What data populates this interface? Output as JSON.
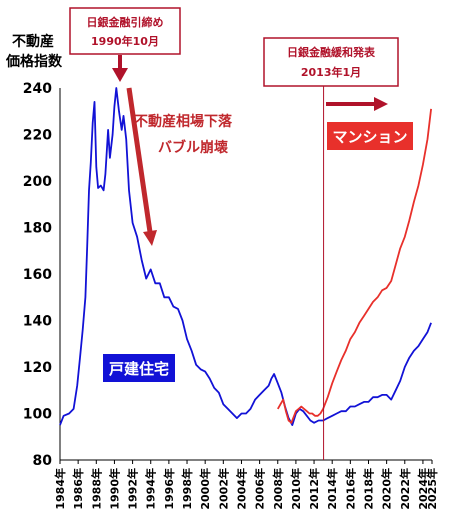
{
  "chart_data": {
    "type": "line",
    "ylabel_line1": "不動産",
    "ylabel_line2": "価格指数",
    "ylim": [
      80,
      240
    ],
    "yticks": [
      80,
      100,
      120,
      140,
      160,
      180,
      200,
      220,
      240
    ],
    "xlim": [
      1984,
      2025
    ],
    "xticks": [
      "1984年",
      "1986年",
      "1988年",
      "1990年",
      "1992年",
      "1994年",
      "1996年",
      "1998年",
      "2000年",
      "2002年",
      "2004年",
      "2006年",
      "2008年",
      "2010年",
      "2012年",
      "2014年",
      "2016年",
      "2018年",
      "2020年",
      "2022年",
      "2024年",
      "2025年"
    ],
    "grid": false,
    "series": [
      {
        "name": "戸建住宅",
        "color": "#1212d6",
        "x": [
          1984.0,
          1984.4,
          1985.0,
          1985.5,
          1985.9,
          1986.2,
          1986.5,
          1986.8,
          1987.0,
          1987.2,
          1987.4,
          1987.6,
          1987.8,
          1988.0,
          1988.2,
          1988.5,
          1988.8,
          1989.0,
          1989.3,
          1989.5,
          1989.8,
          1990.0,
          1990.2,
          1990.5,
          1990.8,
          1991.0,
          1991.3,
          1991.6,
          1992.0,
          1992.5,
          1993.0,
          1993.5,
          1994.0,
          1994.5,
          1995.0,
          1995.5,
          1996.0,
          1996.5,
          1997.0,
          1997.5,
          1998.0,
          1998.5,
          1999.0,
          1999.5,
          2000.0,
          2000.5,
          2001.0,
          2001.5,
          2002.0,
          2002.5,
          2003.0,
          2003.5,
          2004.0,
          2004.5,
          2005.0,
          2005.5,
          2006.0,
          2006.5,
          2007.0,
          2007.3,
          2007.6,
          2008.0,
          2008.4,
          2008.8,
          2009.2,
          2009.6,
          2010.0,
          2010.4,
          2010.8,
          2011.2,
          2011.6,
          2012.0,
          2012.5,
          2013.0,
          2013.5,
          2014.0,
          2014.5,
          2015.0,
          2015.5,
          2016.0,
          2016.5,
          2017.0,
          2017.5,
          2018.0,
          2018.5,
          2019.0,
          2019.5,
          2020.0,
          2020.5,
          2021.0,
          2021.5,
          2022.0,
          2022.5,
          2023.0,
          2023.5,
          2024.0,
          2024.5,
          2024.9
        ],
        "y": [
          95,
          99,
          100,
          102,
          112,
          124,
          136,
          150,
          172,
          196,
          208,
          225,
          234,
          206,
          197,
          198,
          196,
          203,
          222,
          210,
          220,
          232,
          240,
          230,
          222,
          228,
          218,
          196,
          182,
          176,
          166,
          158,
          162,
          156,
          156,
          150,
          150,
          146,
          145,
          140,
          132,
          127,
          121,
          119,
          118,
          115,
          111,
          109,
          104,
          102,
          100,
          98,
          100,
          100,
          102,
          106,
          108,
          110,
          112,
          115,
          117,
          113,
          109,
          103,
          98,
          95,
          100,
          102,
          101,
          99,
          97,
          96,
          97,
          97,
          98,
          99,
          100,
          101,
          101,
          103,
          103,
          104,
          105,
          105,
          107,
          107,
          108,
          108,
          106,
          110,
          114,
          120,
          124,
          127,
          129,
          132,
          135,
          139
        ]
      },
      {
        "name": "マンション",
        "color": "#e8302b",
        "x": [
          2008.0,
          2008.3,
          2008.6,
          2008.9,
          2009.2,
          2009.5,
          2009.8,
          2010.0,
          2010.3,
          2010.6,
          2010.9,
          2011.2,
          2011.5,
          2011.8,
          2012.1,
          2012.4,
          2012.7,
          2013.0,
          2013.5,
          2014.0,
          2014.5,
          2015.0,
          2015.5,
          2016.0,
          2016.5,
          2017.0,
          2017.5,
          2018.0,
          2018.5,
          2019.0,
          2019.5,
          2020.0,
          2020.5,
          2021.0,
          2021.5,
          2022.0,
          2022.5,
          2023.0,
          2023.5,
          2024.0,
          2024.5,
          2024.9
        ],
        "y": [
          102,
          104,
          106,
          101,
          97,
          96,
          99,
          101,
          102,
          103,
          102,
          101,
          100,
          100,
          99,
          99,
          100,
          102,
          107,
          113,
          118,
          123,
          127,
          132,
          135,
          139,
          142,
          145,
          148,
          150,
          153,
          154,
          157,
          164,
          171,
          176,
          183,
          191,
          198,
          207,
          218,
          231
        ]
      }
    ],
    "annotations": {
      "boj_tightening": {
        "line1": "日銀金融引締め",
        "line2": "1990年10月"
      },
      "boj_easing": {
        "line1": "日銀金融緩和発表",
        "line2": "2013年1月"
      },
      "bubble_collapse": {
        "line1": "不動産相場下落",
        "line2": "バブル崩壊"
      }
    },
    "series_labels": {
      "detached": "戸建住宅",
      "condo": "マンション"
    }
  }
}
